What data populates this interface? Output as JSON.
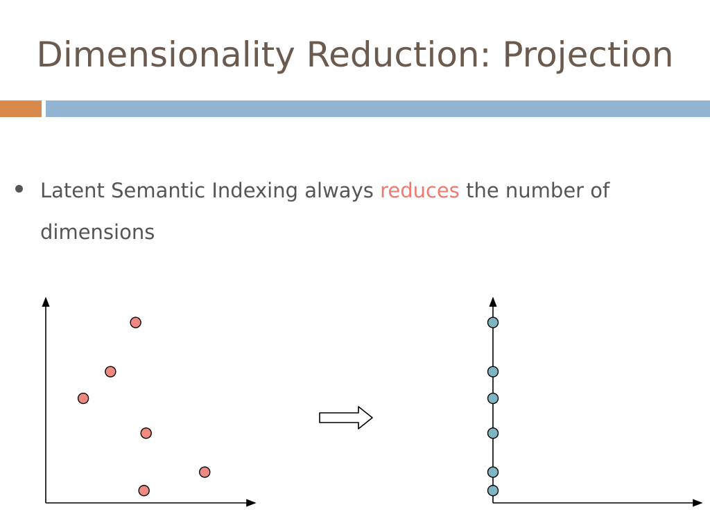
{
  "slide": {
    "title": "Dimensionality Reduction: Projection"
  },
  "bullet": {
    "text_before": "Latent Semantic Indexing always ",
    "highlight": "reduces",
    "text_after": " the number of dimensions"
  },
  "colors": {
    "title": "#6b5a4e",
    "accent_orange": "#d98a4b",
    "accent_blue": "#93b4d3",
    "body_text": "#555555",
    "highlight": "#f07a72",
    "point_red": "#f08a80",
    "point_blue": "#7fb4c3",
    "axis": "#000000"
  },
  "diagram": {
    "left_plot": {
      "points": [
        {
          "x": 0.3,
          "y": 0.88
        },
        {
          "x": 0.18,
          "y": 0.64
        },
        {
          "x": 0.05,
          "y": 0.51
        },
        {
          "x": 0.35,
          "y": 0.34
        },
        {
          "x": 0.63,
          "y": 0.15
        },
        {
          "x": 0.34,
          "y": 0.06
        }
      ]
    },
    "transform_arrow": "right-arrow",
    "right_plot": {
      "points_y": [
        0.88,
        0.64,
        0.51,
        0.34,
        0.15,
        0.06
      ]
    }
  }
}
